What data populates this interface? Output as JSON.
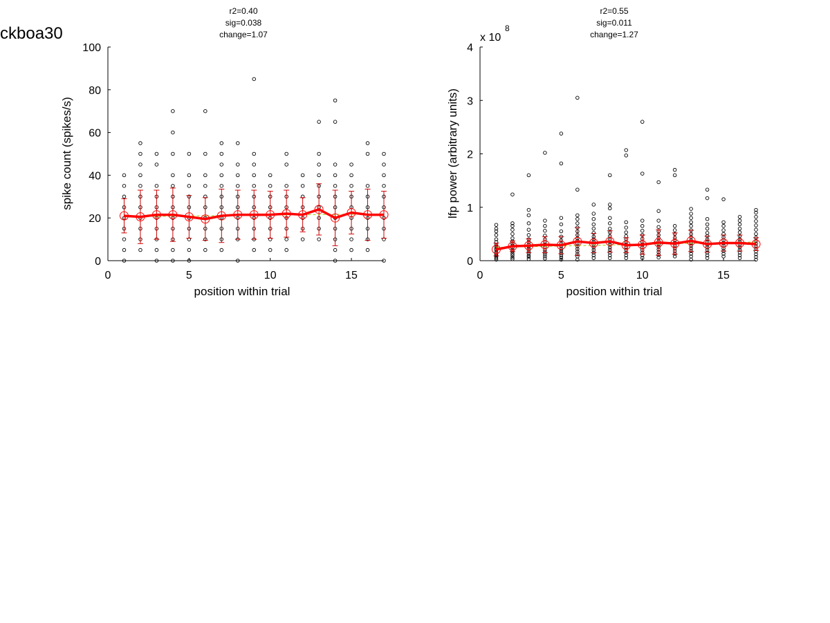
{
  "figure_label": "ckboa30",
  "chart_data": [
    {
      "type": "scatter",
      "stats": [
        "r2=0.40",
        "sig=0.038",
        "change=1.07"
      ],
      "xlabel": "position within trial",
      "ylabel": "spike count (spikes/s)",
      "xlim": [
        0,
        17
      ],
      "ylim": [
        0,
        100
      ],
      "xticks": [
        0,
        5,
        10,
        15
      ],
      "yticks": [
        0,
        20,
        40,
        60,
        80,
        100
      ],
      "xtick_labels": [
        "0",
        "5",
        "10",
        "15"
      ],
      "ytick_labels": [
        "0",
        "20",
        "40",
        "60",
        "80",
        "100"
      ],
      "y_multiplier": "",
      "y_multiplier_exp": "",
      "colors": {
        "points": "#000000",
        "mean_line": "#ff0000",
        "error_bars": "#cc0000",
        "fit_line": "#99cc00"
      },
      "points": [
        {
          "x": 1,
          "y": [
            0,
            5,
            10,
            15,
            20,
            25,
            30,
            35,
            40
          ]
        },
        {
          "x": 2,
          "y": [
            5,
            10,
            15,
            20,
            25,
            30,
            35,
            40,
            45,
            50,
            55
          ]
        },
        {
          "x": 3,
          "y": [
            0,
            5,
            10,
            15,
            20,
            25,
            30,
            35,
            45,
            50
          ]
        },
        {
          "x": 4,
          "y": [
            0,
            5,
            10,
            15,
            20,
            25,
            30,
            35,
            40,
            50,
            60,
            70
          ]
        },
        {
          "x": 5,
          "y": [
            0,
            5,
            10,
            15,
            20,
            25,
            30,
            35,
            40,
            50
          ]
        },
        {
          "x": 6,
          "y": [
            5,
            10,
            15,
            20,
            25,
            30,
            35,
            40,
            50,
            70
          ]
        },
        {
          "x": 7,
          "y": [
            5,
            10,
            15,
            20,
            25,
            30,
            35,
            40,
            45,
            50,
            55
          ]
        },
        {
          "x": 8,
          "y": [
            0,
            10,
            15,
            20,
            25,
            30,
            35,
            40,
            45,
            55
          ]
        },
        {
          "x": 9,
          "y": [
            5,
            10,
            15,
            20,
            25,
            30,
            35,
            40,
            45,
            50,
            85
          ]
        },
        {
          "x": 10,
          "y": [
            5,
            10,
            15,
            20,
            25,
            30,
            35,
            40
          ]
        },
        {
          "x": 11,
          "y": [
            5,
            10,
            15,
            20,
            25,
            30,
            35,
            45,
            50
          ]
        },
        {
          "x": 12,
          "y": [
            10,
            15,
            20,
            25,
            30,
            35,
            40
          ]
        },
        {
          "x": 13,
          "y": [
            10,
            15,
            20,
            25,
            30,
            35,
            40,
            45,
            50,
            65
          ]
        },
        {
          "x": 14,
          "y": [
            0,
            5,
            10,
            15,
            20,
            25,
            30,
            35,
            40,
            45,
            65,
            75
          ]
        },
        {
          "x": 15,
          "y": [
            5,
            10,
            15,
            20,
            25,
            30,
            35,
            40,
            45
          ]
        },
        {
          "x": 16,
          "y": [
            5,
            10,
            15,
            20,
            25,
            30,
            35,
            50,
            55
          ]
        },
        {
          "x": 17,
          "y": [
            0,
            10,
            15,
            20,
            25,
            30,
            35,
            40,
            45,
            50
          ]
        }
      ],
      "mean": [
        21,
        20.5,
        21.5,
        21.5,
        20.5,
        19.5,
        21,
        21.5,
        21.5,
        21.5,
        22,
        21.5,
        24,
        20,
        22.5,
        21.5,
        21.5
      ],
      "error": [
        8,
        12.5,
        11.5,
        12.5,
        10,
        10,
        12.5,
        11.5,
        11.5,
        11,
        11,
        8,
        12,
        13,
        10,
        12,
        11
      ],
      "fit": [
        20.6,
        21.9
      ]
    },
    {
      "type": "scatter",
      "stats": [
        "r2=0.55",
        "sig=0.011",
        "change=1.27"
      ],
      "xlabel": "position within trial",
      "ylabel": "lfp power (arbitrary units)",
      "xlim": [
        0,
        17
      ],
      "ylim": [
        0,
        4
      ],
      "xticks": [
        0,
        5,
        10,
        15
      ],
      "yticks": [
        0,
        1,
        2,
        3,
        4
      ],
      "xtick_labels": [
        "0",
        "5",
        "10",
        "15"
      ],
      "ytick_labels": [
        "0",
        "1",
        "2",
        "3",
        "4"
      ],
      "y_multiplier": "x 10",
      "y_multiplier_exp": "8",
      "colors": {
        "points": "#000000",
        "mean_line": "#ff0000",
        "error_bars": "#cc0000",
        "fit_line": "#99cc00"
      },
      "points": [
        {
          "x": 1,
          "y": [
            0.02,
            0.05,
            0.08,
            0.1,
            0.13,
            0.16,
            0.2,
            0.23,
            0.27,
            0.3,
            0.35,
            0.4,
            0.48,
            0.55,
            0.6,
            0.67
          ]
        },
        {
          "x": 2,
          "y": [
            0.03,
            0.06,
            0.1,
            0.13,
            0.17,
            0.2,
            0.24,
            0.28,
            0.32,
            0.36,
            0.42,
            0.5,
            0.58,
            0.65,
            0.7,
            1.24
          ]
        },
        {
          "x": 3,
          "y": [
            0.03,
            0.07,
            0.1,
            0.14,
            0.18,
            0.22,
            0.26,
            0.3,
            0.35,
            0.4,
            0.48,
            0.58,
            0.7,
            0.85,
            0.95,
            1.6
          ]
        },
        {
          "x": 4,
          "y": [
            0.04,
            0.08,
            0.12,
            0.16,
            0.2,
            0.25,
            0.3,
            0.35,
            0.4,
            0.47,
            0.56,
            0.65,
            0.75,
            2.02
          ]
        },
        {
          "x": 5,
          "y": [
            0.02,
            0.06,
            0.1,
            0.14,
            0.18,
            0.22,
            0.27,
            0.32,
            0.38,
            0.45,
            0.55,
            0.68,
            0.8,
            1.82,
            2.38
          ]
        },
        {
          "x": 6,
          "y": [
            0.02,
            0.08,
            0.12,
            0.17,
            0.22,
            0.27,
            0.32,
            0.37,
            0.42,
            0.48,
            0.55,
            0.62,
            0.7,
            0.78,
            0.85,
            1.33,
            3.05
          ]
        },
        {
          "x": 7,
          "y": [
            0.05,
            0.1,
            0.15,
            0.2,
            0.25,
            0.3,
            0.35,
            0.4,
            0.45,
            0.52,
            0.6,
            0.68,
            0.78,
            0.88,
            1.05
          ]
        },
        {
          "x": 8,
          "y": [
            0.05,
            0.1,
            0.15,
            0.2,
            0.25,
            0.3,
            0.35,
            0.4,
            0.46,
            0.53,
            0.6,
            0.7,
            0.8,
            0.98,
            1.05,
            1.6
          ]
        },
        {
          "x": 9,
          "y": [
            0.05,
            0.1,
            0.15,
            0.2,
            0.25,
            0.3,
            0.35,
            0.4,
            0.46,
            0.53,
            0.62,
            0.72,
            1.97,
            2.07
          ]
        },
        {
          "x": 10,
          "y": [
            0.05,
            0.1,
            0.15,
            0.2,
            0.25,
            0.3,
            0.35,
            0.41,
            0.48,
            0.56,
            0.65,
            0.75,
            1.63,
            2.6
          ]
        },
        {
          "x": 11,
          "y": [
            0.06,
            0.11,
            0.16,
            0.21,
            0.26,
            0.31,
            0.36,
            0.42,
            0.48,
            0.55,
            0.63,
            0.75,
            0.93,
            1.47
          ]
        },
        {
          "x": 12,
          "y": [
            0.08,
            0.13,
            0.18,
            0.23,
            0.28,
            0.33,
            0.38,
            0.43,
            0.5,
            0.57,
            0.65,
            1.6,
            1.7
          ]
        },
        {
          "x": 13,
          "y": [
            0.02,
            0.08,
            0.13,
            0.18,
            0.23,
            0.28,
            0.33,
            0.38,
            0.44,
            0.5,
            0.57,
            0.65,
            0.72,
            0.8,
            0.88,
            0.97
          ]
        },
        {
          "x": 14,
          "y": [
            0.05,
            0.1,
            0.15,
            0.2,
            0.25,
            0.3,
            0.35,
            0.4,
            0.46,
            0.52,
            0.6,
            0.68,
            0.78,
            1.17,
            1.33
          ]
        },
        {
          "x": 15,
          "y": [
            0.08,
            0.13,
            0.18,
            0.23,
            0.28,
            0.33,
            0.38,
            0.44,
            0.5,
            0.57,
            0.65,
            0.72,
            1.15
          ]
        },
        {
          "x": 16,
          "y": [
            0.05,
            0.1,
            0.15,
            0.2,
            0.25,
            0.3,
            0.35,
            0.4,
            0.46,
            0.53,
            0.6,
            0.68,
            0.75,
            0.82
          ]
        },
        {
          "x": 17,
          "y": [
            0.02,
            0.07,
            0.12,
            0.17,
            0.22,
            0.27,
            0.32,
            0.37,
            0.43,
            0.5,
            0.58,
            0.66,
            0.74,
            0.82,
            0.9,
            0.95
          ]
        }
      ],
      "mean": [
        0.21,
        0.27,
        0.28,
        0.3,
        0.29,
        0.36,
        0.33,
        0.36,
        0.29,
        0.3,
        0.34,
        0.32,
        0.37,
        0.31,
        0.33,
        0.33,
        0.31
      ],
      "error": [
        0.12,
        0.1,
        0.13,
        0.15,
        0.16,
        0.26,
        0.18,
        0.2,
        0.14,
        0.18,
        0.24,
        0.2,
        0.2,
        0.15,
        0.15,
        0.15,
        0.12
      ],
      "fit": [
        0.25,
        0.35
      ]
    }
  ]
}
